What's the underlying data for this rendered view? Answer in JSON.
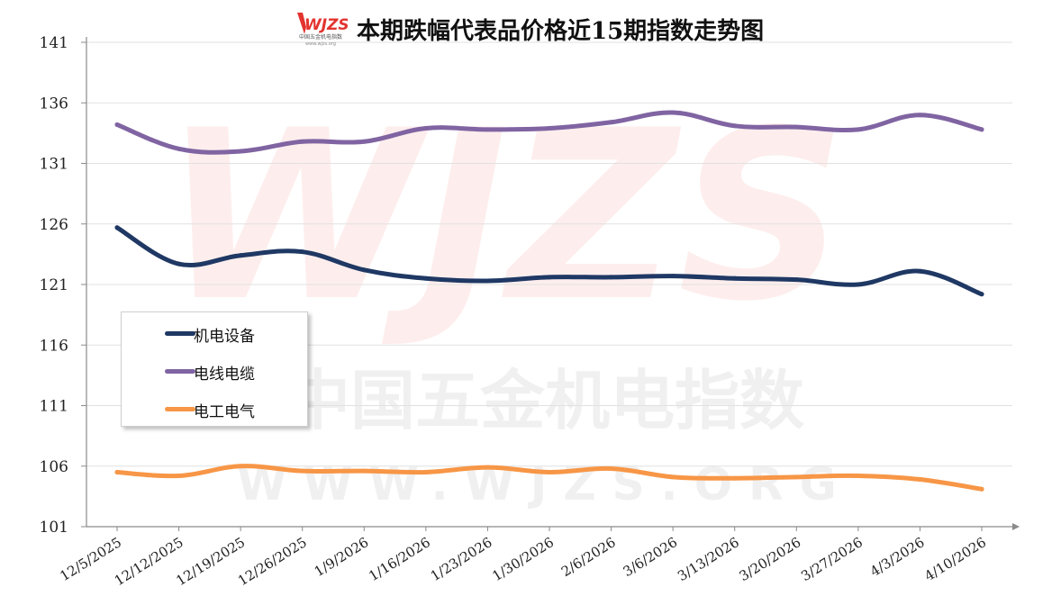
{
  "title": "本期跌幅代表品价格近15期指数走势图",
  "logo": {
    "mark": "WJZS",
    "caption": "中国五金机电指数",
    "url": "www.wjzs.org"
  },
  "watermark": {
    "mark": "WJZS",
    "text_cn": "中国五金机电指数",
    "text_en": "WWW.WJZS.ORG"
  },
  "colors": {
    "grid": "#e1e1e1",
    "axis": "#8a8a8a"
  },
  "chart_data": {
    "type": "line",
    "title": "本期跌幅代表品价格近15期指数走势图",
    "xlabel": "",
    "ylabel": "",
    "categories": [
      "12/5/2025",
      "12/12/2025",
      "12/19/2025",
      "12/26/2025",
      "1/9/2026",
      "1/16/2026",
      "1/23/2026",
      "1/30/2026",
      "2/6/2026",
      "3/6/2026",
      "3/13/2026",
      "3/20/2026",
      "3/27/2026",
      "4/3/2026",
      "4/10/2026"
    ],
    "ylim": [
      101,
      141
    ],
    "yticks": [
      101,
      106,
      111,
      116,
      121,
      126,
      131,
      136,
      141
    ],
    "grid": true,
    "legend": "left-middle",
    "series": [
      {
        "name": "机电设备",
        "color": "#1f3864",
        "values": [
          125.7,
          122.7,
          123.4,
          123.7,
          122.2,
          121.5,
          121.3,
          121.6,
          121.6,
          121.7,
          121.5,
          121.4,
          121.0,
          122.1,
          120.2
        ]
      },
      {
        "name": "电线电缆",
        "color": "#8064a2",
        "values": [
          134.2,
          132.2,
          132.0,
          132.8,
          132.8,
          133.9,
          133.8,
          133.9,
          134.4,
          135.2,
          134.1,
          134.0,
          133.8,
          135.0,
          133.8
        ]
      },
      {
        "name": "电工电气",
        "color": "#f79646",
        "values": [
          105.5,
          105.2,
          106.0,
          105.6,
          105.6,
          105.5,
          105.9,
          105.5,
          105.8,
          105.1,
          105.0,
          105.1,
          105.2,
          104.9,
          104.1
        ]
      }
    ]
  }
}
